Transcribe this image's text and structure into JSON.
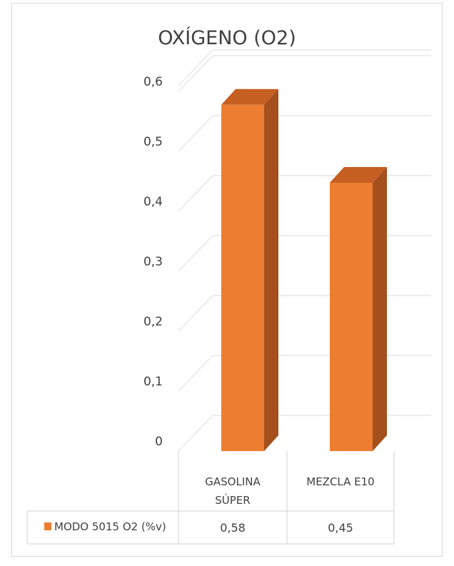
{
  "chart_data": {
    "type": "bar",
    "title": "OXÍGENO (O2)",
    "categories": [
      [
        "GASOLINA",
        "SÚPER"
      ],
      [
        "MEZCLA E10"
      ]
    ],
    "series": [
      {
        "name": "MODO 5015 O2 (%v)",
        "values": [
          0.58,
          0.45
        ],
        "value_labels": [
          "0,58",
          "0,45"
        ],
        "color": "#ed7d31"
      }
    ],
    "y_ticks": [
      "0",
      "0,1",
      "0,2",
      "0,3",
      "0,4",
      "0,5",
      "0,6"
    ],
    "ylim": [
      0,
      0.6
    ],
    "grid": true,
    "style": "3d-column",
    "legend": "data-table"
  }
}
